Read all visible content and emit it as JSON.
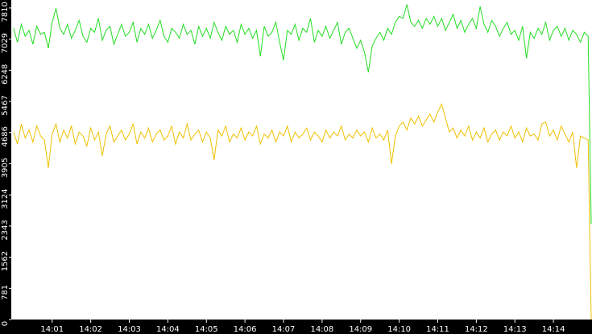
{
  "chart_data": {
    "type": "line",
    "x": [
      0,
      0.1,
      0.2,
      0.3,
      0.4,
      0.5,
      0.6,
      0.7,
      0.8,
      0.9,
      1,
      1.1,
      1.2,
      1.3,
      1.4,
      1.5,
      1.6,
      1.7,
      1.8,
      1.9,
      2,
      2.1,
      2.2,
      2.3,
      2.4,
      2.5,
      2.6,
      2.7,
      2.8,
      2.9,
      3,
      3.1,
      3.2,
      3.3,
      3.4,
      3.5,
      3.6,
      3.7,
      3.8,
      3.9,
      4,
      4.1,
      4.2,
      4.3,
      4.4,
      4.5,
      4.6,
      4.7,
      4.8,
      4.9,
      5,
      5.1,
      5.2,
      5.3,
      5.4,
      5.5,
      5.6,
      5.7,
      5.8,
      5.9,
      6,
      6.1,
      6.2,
      6.3,
      6.4,
      6.5,
      6.6,
      6.7,
      6.8,
      6.9,
      7,
      7.1,
      7.2,
      7.3,
      7.4,
      7.5,
      7.6,
      7.7,
      7.8,
      7.9,
      8,
      8.1,
      8.2,
      8.3,
      8.4,
      8.5,
      8.6,
      8.7,
      8.8,
      8.9,
      9,
      9.1,
      9.2,
      9.3,
      9.4,
      9.5,
      9.6,
      9.7,
      9.8,
      9.9,
      10,
      10.1,
      10.2,
      10.3,
      10.4,
      10.5,
      10.6,
      10.7,
      10.8,
      10.9,
      11,
      11.1,
      11.2,
      11.3,
      11.4,
      11.5,
      11.6,
      11.7,
      11.8,
      11.9,
      12,
      12.1,
      12.2,
      12.3,
      12.4,
      12.5,
      12.6,
      12.7,
      12.8,
      12.9,
      13,
      13.1,
      13.2,
      13.3,
      13.4,
      13.5,
      13.6,
      13.7,
      13.8,
      13.9,
      14,
      14.1,
      14.2,
      14.3,
      14.4,
      14.5,
      14.6,
      14.7,
      14.8,
      14.9,
      14.98
    ],
    "series": [
      {
        "color": "#22dd22",
        "values": [
          7300,
          6950,
          7400,
          7100,
          7250,
          6900,
          7350,
          7150,
          7200,
          6800,
          7450,
          7800,
          7300,
          7150,
          7400,
          7050,
          7250,
          7500,
          7100,
          6950,
          7300,
          7200,
          7550,
          7000,
          7250,
          7350,
          6900,
          7150,
          7400,
          7100,
          7200,
          7450,
          6950,
          7300,
          7150,
          7400,
          7050,
          7250,
          7500,
          7100,
          6950,
          7300,
          7200,
          7050,
          7400,
          7150,
          7250,
          6900,
          7350,
          7100,
          7300,
          7050,
          7450,
          7200,
          7000,
          7350,
          7150,
          7250,
          6950,
          7400,
          7150,
          7300,
          7050,
          7250,
          6600,
          7350,
          7100,
          7200,
          7450,
          6950,
          6500,
          7250,
          7150,
          7400,
          7000,
          7300,
          7200,
          7550,
          6950,
          7250,
          7100,
          7350,
          7050,
          7250,
          7450,
          6900,
          7200,
          7300,
          7050,
          6800,
          7000,
          6700,
          6200,
          6850,
          7050,
          7200,
          7000,
          7300,
          7150,
          7450,
          7600,
          7550,
          7900,
          7450,
          7350,
          7500,
          7300,
          7550,
          7400,
          7600,
          7350,
          7550,
          7250,
          7450,
          7650,
          7300,
          7500,
          7200,
          7400,
          7550,
          7300,
          7850,
          7400,
          7200,
          7500,
          7350,
          7100,
          7300,
          7450,
          7150,
          7250,
          7000,
          7350,
          6550,
          7200,
          7050,
          7300,
          7150,
          7450,
          7000,
          7250,
          7350,
          7100,
          7300,
          7000,
          7250,
          7150,
          6950,
          7200,
          7100,
          2400
        ]
      },
      {
        "color": "#f0c000",
        "values": [
          4700,
          4400,
          4900,
          4550,
          4750,
          4450,
          4850,
          4600,
          4500,
          3800,
          4650,
          4900,
          4450,
          4750,
          4550,
          4850,
          4400,
          4700,
          4600,
          4350,
          4800,
          4500,
          4700,
          4100,
          4650,
          4850,
          4450,
          4600,
          4750,
          4500,
          4650,
          4900,
          4400,
          4700,
          4550,
          4800,
          4450,
          4650,
          4750,
          4500,
          4600,
          4850,
          4400,
          4700,
          4550,
          4900,
          4500,
          4650,
          4750,
          4450,
          4700,
          4550,
          4000,
          4750,
          4600,
          4850,
          4450,
          4650,
          4550,
          4800,
          4500,
          4700,
          4600,
          4850,
          4400,
          4650,
          4550,
          4750,
          4450,
          4700,
          4600,
          4850,
          4450,
          4700,
          4550,
          4650,
          4800,
          4500,
          4700,
          4600,
          4450,
          4750,
          4550,
          4700,
          4600,
          4850,
          4500,
          4650,
          4550,
          4750,
          4600,
          4700,
          4450,
          4800,
          4550,
          4650,
          4500,
          4750,
          3900,
          4600,
          4850,
          4950,
          4750,
          5050,
          4900,
          5100,
          4850,
          5000,
          5150,
          4950,
          5200,
          5400,
          5050,
          4700,
          4800,
          4550,
          4750,
          4600,
          4850,
          4500,
          4700,
          4550,
          4800,
          4450,
          4650,
          4750,
          4500,
          4700,
          4600,
          4850,
          4550,
          4700,
          4450,
          4800,
          4600,
          4650,
          4500,
          4900,
          4950,
          4600,
          4750,
          4500,
          4850,
          4650,
          4450,
          4700,
          3800,
          4600,
          4550,
          4500,
          0
        ]
      }
    ],
    "xlim": [
      -0.06,
      15
    ],
    "xticks": [
      {
        "value": 1,
        "label": "14:01"
      },
      {
        "value": 2,
        "label": "14:02"
      },
      {
        "value": 3,
        "label": "14:03"
      },
      {
        "value": 4,
        "label": "14:04"
      },
      {
        "value": 5,
        "label": "14:05"
      },
      {
        "value": 6,
        "label": "14:06"
      },
      {
        "value": 7,
        "label": "14:07"
      },
      {
        "value": 8,
        "label": "14:08"
      },
      {
        "value": 9,
        "label": "14:09"
      },
      {
        "value": 10,
        "label": "14:10"
      },
      {
        "value": 11,
        "label": "14:11"
      },
      {
        "value": 12,
        "label": "14:12"
      },
      {
        "value": 13,
        "label": "14:13"
      },
      {
        "value": 14,
        "label": "14:14"
      }
    ],
    "ylim": [
      0,
      8010
    ],
    "yticks": [
      0,
      781,
      1562,
      2343,
      3124,
      3905,
      4686,
      5467,
      6248,
      7029,
      7810
    ]
  }
}
